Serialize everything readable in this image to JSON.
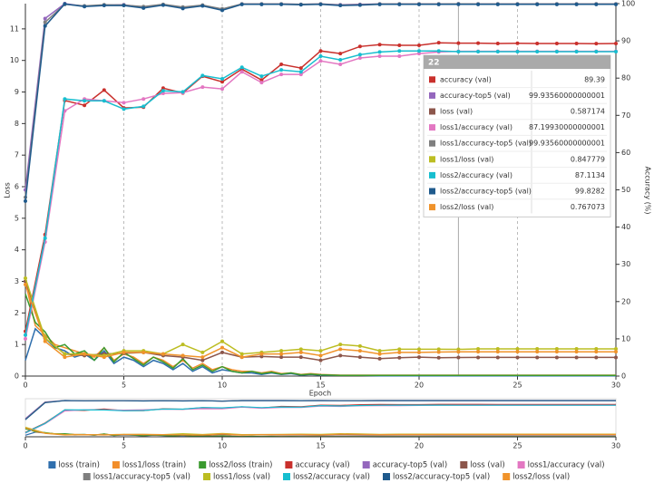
{
  "chart_data": {
    "type": "line",
    "xlabel": "Epoch",
    "ylabel": "Loss",
    "y2label": "Accuracy (%)",
    "xlim": [
      0,
      30
    ],
    "xticks": [
      0,
      5,
      10,
      15,
      20,
      25,
      30
    ],
    "ylim": [
      0,
      11.8
    ],
    "yticks": [
      0,
      1,
      2,
      3,
      4,
      5,
      6,
      7,
      8,
      9,
      10,
      11
    ],
    "y2lim": [
      0,
      100
    ],
    "y2ticks": [
      0,
      10,
      20,
      30,
      40,
      50,
      60,
      70,
      80,
      90,
      100
    ],
    "grid": true,
    "tooltip_x": 22,
    "x": [
      0,
      1,
      2,
      3,
      4,
      5,
      6,
      7,
      8,
      9,
      10,
      11,
      12,
      13,
      14,
      15,
      16,
      17,
      18,
      19,
      20,
      21,
      22,
      23,
      24,
      25,
      26,
      27,
      28,
      29,
      30
    ],
    "series": [
      {
        "name": "loss (train)",
        "color": "#2f6fad",
        "x": [
          0,
          0.5,
          1,
          1.5,
          2,
          2.5,
          3,
          3.5,
          4,
          4.5,
          5,
          5.5,
          6,
          6.5,
          7,
          7.5,
          8,
          8.5,
          9,
          9.5,
          10,
          10.5,
          11,
          11.5,
          12,
          12.5,
          13,
          13.5,
          14,
          14.5,
          15,
          16,
          17,
          18,
          19,
          20,
          21,
          22,
          23,
          24,
          25,
          26,
          27,
          28,
          29,
          30
        ],
        "values": [
          0.5,
          1.5,
          1.2,
          0.9,
          0.8,
          0.6,
          0.7,
          0.5,
          0.8,
          0.4,
          0.6,
          0.5,
          0.3,
          0.5,
          0.4,
          0.2,
          0.4,
          0.15,
          0.3,
          0.1,
          0.2,
          0.15,
          0.1,
          0.1,
          0.05,
          0.1,
          0.05,
          0.08,
          0.03,
          0.05,
          0.03,
          0.02,
          0.02,
          0.01,
          0.01,
          0.01,
          0.01,
          0.01,
          0.01,
          0.01,
          0.01,
          0.01,
          0.01,
          0.01,
          0.01,
          0.01
        ]
      },
      {
        "name": "loss1/loss (train)",
        "color": "#f28e2b",
        "x": [
          0,
          0.5,
          1,
          1.5,
          2,
          2.5,
          3,
          3.5,
          4,
          4.5,
          5,
          5.5,
          6,
          6.5,
          7,
          7.5,
          8,
          8.5,
          9,
          9.5,
          10,
          10.5,
          11,
          11.5,
          12,
          12.5,
          13,
          13.5,
          14,
          14.5,
          15,
          16,
          17,
          18,
          19,
          20,
          21,
          22,
          23,
          24,
          25,
          26,
          27,
          28,
          29,
          30
        ],
        "values": [
          3.0,
          1.6,
          1.3,
          1.0,
          0.9,
          0.8,
          0.7,
          0.6,
          0.9,
          0.5,
          0.7,
          0.6,
          0.4,
          0.6,
          0.5,
          0.3,
          0.5,
          0.25,
          0.4,
          0.2,
          0.3,
          0.2,
          0.15,
          0.15,
          0.1,
          0.15,
          0.08,
          0.1,
          0.05,
          0.08,
          0.05,
          0.03,
          0.03,
          0.03,
          0.03,
          0.03,
          0.03,
          0.03,
          0.03,
          0.03,
          0.03,
          0.03,
          0.03,
          0.03,
          0.03,
          0.03
        ]
      },
      {
        "name": "loss2/loss (train)",
        "color": "#3a9a2f",
        "x": [
          0,
          0.5,
          1,
          1.5,
          2,
          2.5,
          3,
          3.5,
          4,
          4.5,
          5,
          5.5,
          6,
          6.5,
          7,
          7.5,
          8,
          8.5,
          9,
          9.5,
          10,
          10.5,
          11,
          11.5,
          12,
          12.5,
          13,
          13.5,
          14,
          14.5,
          15,
          16,
          17,
          18,
          19,
          20,
          21,
          22,
          23,
          24,
          25,
          26,
          27,
          28,
          29,
          30
        ],
        "values": [
          2.6,
          1.7,
          1.4,
          0.9,
          1.0,
          0.7,
          0.8,
          0.5,
          0.9,
          0.45,
          0.75,
          0.55,
          0.35,
          0.6,
          0.45,
          0.25,
          0.55,
          0.2,
          0.35,
          0.15,
          0.3,
          0.15,
          0.1,
          0.15,
          0.08,
          0.12,
          0.06,
          0.1,
          0.04,
          0.06,
          0.04,
          0.02,
          0.02,
          0.02,
          0.02,
          0.02,
          0.02,
          0.02,
          0.02,
          0.02,
          0.02,
          0.02,
          0.02,
          0.02,
          0.02,
          0.02
        ]
      },
      {
        "name": "accuracy (val)",
        "color": "#c9302c",
        "axis": "y2",
        "values": [
          12,
          38,
          74,
          72.7,
          76.8,
          72,
          72.2,
          77.3,
          76,
          80.5,
          79,
          82.4,
          79.5,
          83.7,
          82.7,
          87.3,
          86.6,
          88.5,
          89,
          88.8,
          88.8,
          89.5,
          89.39,
          89.4,
          89.3,
          89.35,
          89.3,
          89.3,
          89.3,
          89.25,
          89.3
        ]
      },
      {
        "name": "accuracy-top5 (val)",
        "color": "#9467bd",
        "axis": "y2",
        "values": [
          50,
          96,
          100,
          99.3,
          99.6,
          99.7,
          99.0,
          99.7,
          98.9,
          99.5,
          98.4,
          99.9,
          99.9,
          99.9,
          99.8,
          99.9,
          99.7,
          99.8,
          99.9,
          99.9,
          99.9,
          99.9,
          99.93560000000001,
          99.9,
          99.9,
          99.9,
          99.9,
          99.9,
          99.9,
          99.9,
          99.9
        ]
      },
      {
        "name": "loss (val)",
        "color": "#8c564b",
        "values": [
          3.0,
          1.2,
          0.7,
          0.65,
          0.7,
          0.72,
          0.75,
          0.65,
          0.6,
          0.5,
          0.75,
          0.6,
          0.62,
          0.6,
          0.6,
          0.5,
          0.65,
          0.6,
          0.55,
          0.58,
          0.6,
          0.58,
          0.587174,
          0.59,
          0.59,
          0.59,
          0.59,
          0.59,
          0.59,
          0.59,
          0.59
        ]
      },
      {
        "name": "loss1/accuracy (val)",
        "color": "#e377c2",
        "axis": "y2",
        "values": [
          10,
          36,
          71.2,
          74.4,
          73.9,
          73.4,
          74.4,
          75.9,
          76.1,
          77.6,
          77.1,
          81.7,
          78.8,
          81,
          81,
          84.6,
          83.7,
          85.4,
          85.9,
          85.9,
          86.6,
          87,
          87.19930000000001,
          87.2,
          87.2,
          87.2,
          87.2,
          87.2,
          87.2,
          87.2,
          87.2
        ]
      },
      {
        "name": "loss1/accuracy-top5 (val)",
        "color": "#7f7f7f",
        "axis": "y2",
        "values": [
          48,
          95,
          99.8,
          99.4,
          99.7,
          99.6,
          99.2,
          99.8,
          99.1,
          99.6,
          98.6,
          99.9,
          99.9,
          99.9,
          99.8,
          99.9,
          99.6,
          99.7,
          99.9,
          99.9,
          99.9,
          99.9,
          99.93560000000001,
          99.9,
          99.9,
          99.9,
          99.9,
          99.9,
          99.9,
          99.9,
          99.9
        ]
      },
      {
        "name": "loss1/loss (val)",
        "color": "#bcbd22",
        "values": [
          3.1,
          1.2,
          0.7,
          0.7,
          0.65,
          0.8,
          0.8,
          0.7,
          1.0,
          0.75,
          1.1,
          0.7,
          0.75,
          0.8,
          0.85,
          0.8,
          1.0,
          0.95,
          0.8,
          0.85,
          0.85,
          0.85,
          0.847779,
          0.86,
          0.86,
          0.86,
          0.86,
          0.86,
          0.86,
          0.86,
          0.86
        ]
      },
      {
        "name": "loss2/accuracy (val)",
        "color": "#17becf",
        "axis": "y2",
        "values": [
          11,
          37,
          74.4,
          73.9,
          73.9,
          71.7,
          72.4,
          76.6,
          76.3,
          80.7,
          79.8,
          82.9,
          80.5,
          82.2,
          81.7,
          85.9,
          84.9,
          86.3,
          87,
          87.3,
          87.3,
          87.3,
          87.1134,
          87.1,
          87.1,
          87.1,
          87.1,
          87.1,
          87.1,
          87.1,
          87.1
        ]
      },
      {
        "name": "loss2/accuracy-top5 (val)",
        "color": "#1f5a8c",
        "axis": "y2",
        "values": [
          47,
          94,
          99.9,
          99.2,
          99.5,
          99.5,
          98.8,
          99.6,
          98.7,
          99.4,
          98.2,
          99.8,
          99.8,
          99.8,
          99.7,
          99.8,
          99.5,
          99.6,
          99.8,
          99.8,
          99.8,
          99.8,
          99.8282,
          99.8,
          99.8,
          99.8,
          99.8,
          99.8,
          99.8,
          99.8,
          99.8
        ]
      },
      {
        "name": "loss2/loss (val)",
        "color": "#f0932b",
        "values": [
          2.9,
          1.1,
          0.6,
          0.7,
          0.6,
          0.75,
          0.75,
          0.7,
          0.65,
          0.6,
          0.9,
          0.6,
          0.7,
          0.7,
          0.75,
          0.65,
          0.85,
          0.8,
          0.7,
          0.75,
          0.75,
          0.76,
          0.767073,
          0.77,
          0.77,
          0.77,
          0.77,
          0.77,
          0.77,
          0.77,
          0.77
        ]
      }
    ]
  }
}
